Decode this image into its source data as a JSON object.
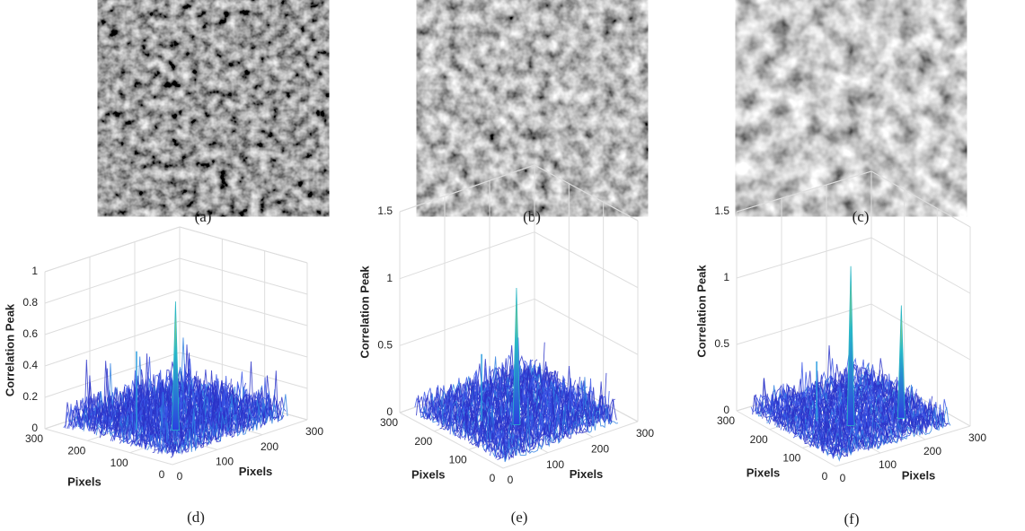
{
  "figure_labels": [
    "(a)",
    "(b)",
    "(c)"
  ],
  "chart_data": [
    {
      "type": "surface",
      "panel_label": "(d)",
      "zlabel": "Correlation Peak",
      "xlabel": "Pixels",
      "ylabel": "Pixels",
      "xlim": [
        0,
        300
      ],
      "ylim": [
        0,
        300
      ],
      "zlim": [
        0,
        1
      ],
      "xticks": [
        0,
        100,
        200,
        300
      ],
      "yticks": [
        0,
        100,
        200,
        300
      ],
      "zticks": [
        0,
        0.2,
        0.4,
        0.6,
        0.8,
        1
      ],
      "noise_max": 0.5,
      "peaks": [
        {
          "x": 128,
          "y": 128,
          "z": 0.82
        }
      ]
    },
    {
      "type": "surface",
      "panel_label": "(e)",
      "zlabel": "Correlation Peak",
      "xlabel": "Pixels",
      "ylabel": "Pixels",
      "xlim": [
        0,
        300
      ],
      "ylim": [
        0,
        300
      ],
      "zlim": [
        0,
        1.5
      ],
      "xticks": [
        0,
        100,
        200,
        300
      ],
      "yticks": [
        0,
        100,
        200,
        300
      ],
      "zticks": [
        0,
        0.5,
        1,
        1.5
      ],
      "noise_max": 0.5,
      "peaks": [
        {
          "x": 128,
          "y": 128,
          "z": 1.02
        }
      ]
    },
    {
      "type": "surface",
      "panel_label": "(f)",
      "zlabel": "Correlation Peak",
      "xlabel": "Pixels",
      "ylabel": "Pixels",
      "xlim": [
        0,
        300
      ],
      "ylim": [
        0,
        300
      ],
      "zlim": [
        0,
        1.5
      ],
      "xticks": [
        0,
        100,
        200,
        300
      ],
      "yticks": [
        0,
        100,
        200,
        300
      ],
      "zticks": [
        0,
        0.5,
        1,
        1.5
      ],
      "noise_max": 0.45,
      "peaks": [
        {
          "x": 128,
          "y": 128,
          "z": 1.2
        },
        {
          "x": 220,
          "y": 100,
          "z": 0.85
        }
      ]
    }
  ]
}
